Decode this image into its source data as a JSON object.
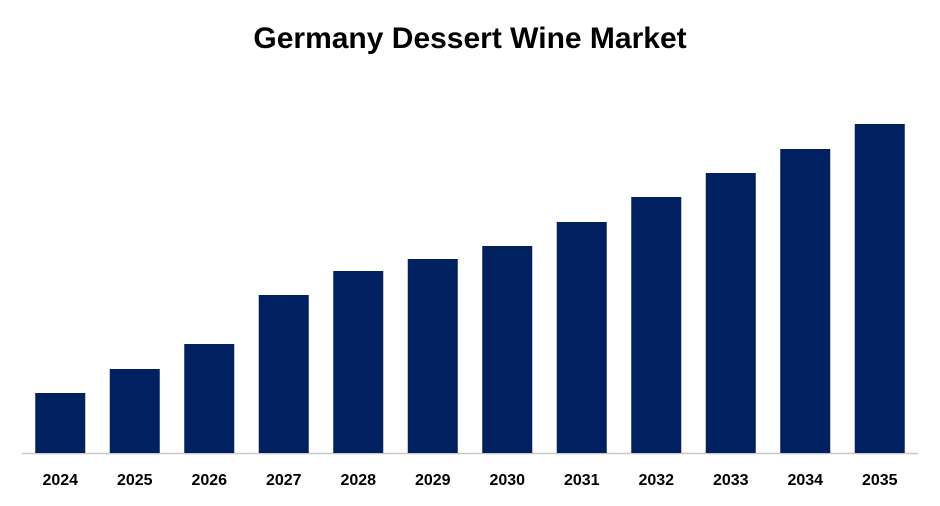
{
  "chart_data": {
    "type": "bar",
    "title": "Germany Dessert Wine Market",
    "categories": [
      "2024",
      "2025",
      "2026",
      "2027",
      "2028",
      "2029",
      "2030",
      "2031",
      "2032",
      "2033",
      "2034",
      "2035"
    ],
    "values": [
      60,
      84,
      109,
      158,
      182,
      194,
      207,
      231,
      256,
      280,
      304,
      329
    ],
    "color": "#002060",
    "ylim": [
      0,
      340
    ]
  }
}
